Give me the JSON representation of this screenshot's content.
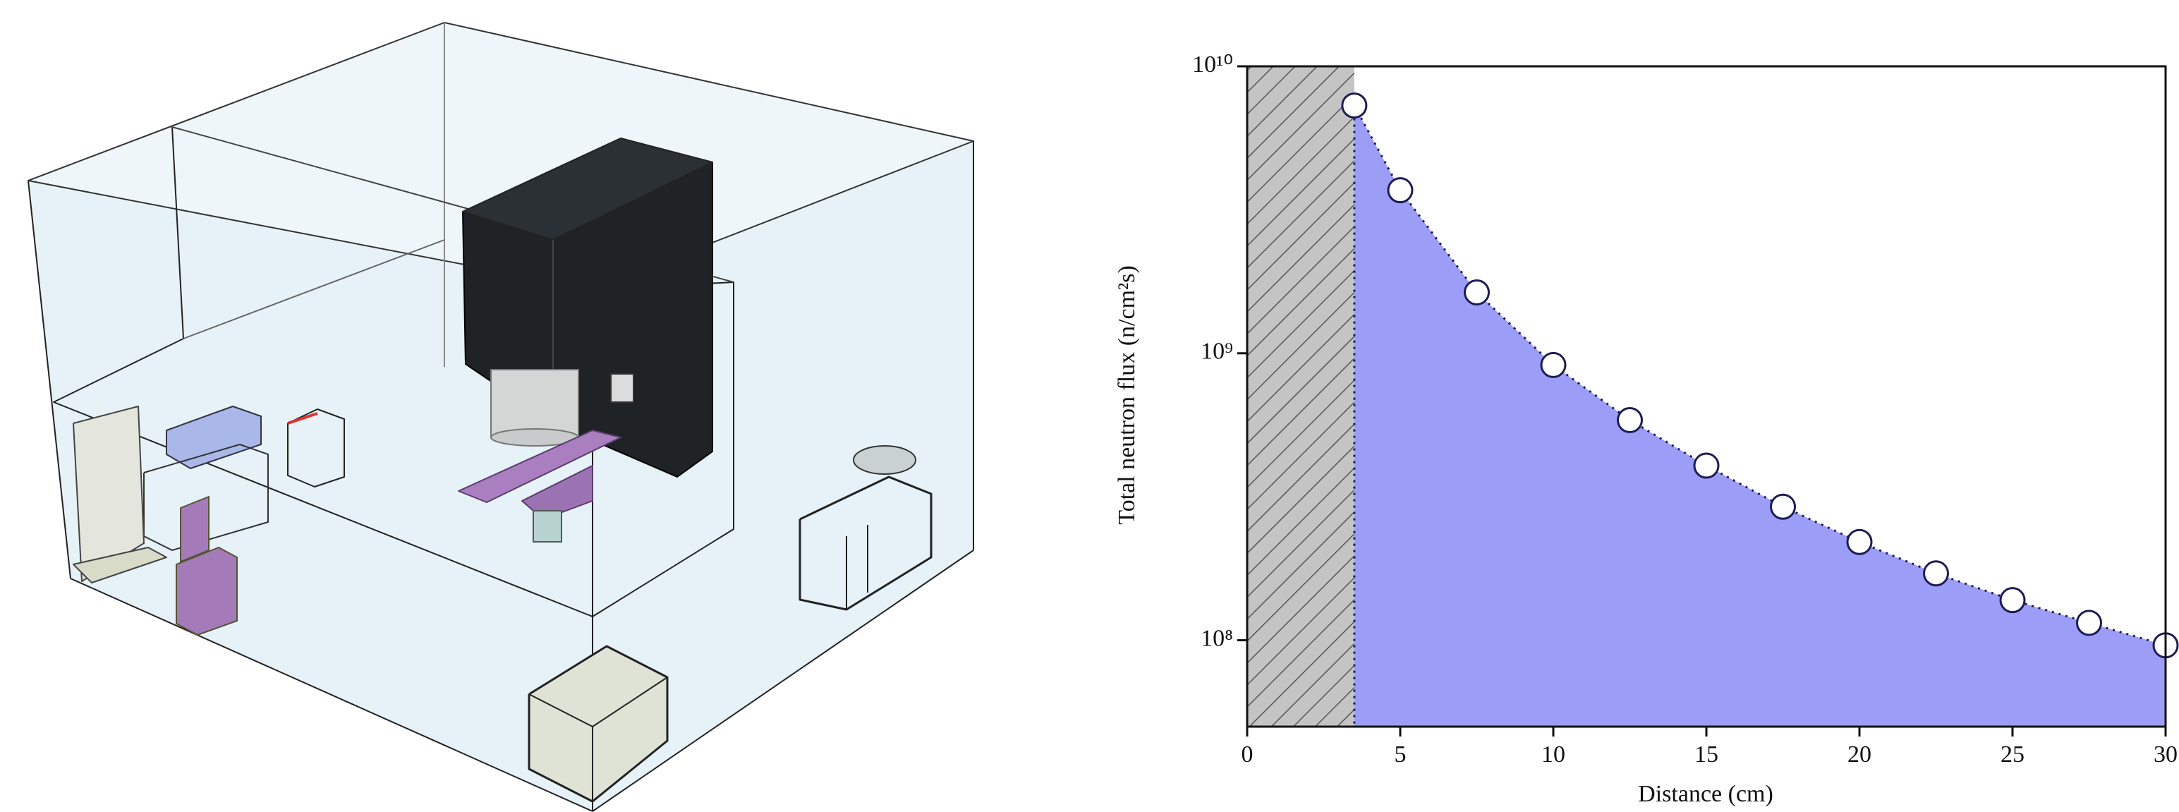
{
  "chart_data": {
    "type": "line",
    "xlabel": "Distance (cm)",
    "ylabel": "Total neutron flux (n/cm²s)",
    "x": [
      3.5,
      5,
      7.5,
      10,
      12.5,
      15,
      17.5,
      20,
      22.5,
      25,
      27.5,
      30
    ],
    "values": [
      7300000000,
      3700000000,
      1630000000,
      910000000,
      585000000,
      406000000,
      292000000,
      220000000,
      171000000,
      138000000,
      115000000,
      96000000
    ],
    "xlim": [
      0,
      30
    ],
    "ylim": [
      50000000,
      10000000000
    ],
    "xticks": [
      0,
      5,
      10,
      15,
      20,
      25,
      30
    ],
    "yticks": [
      {
        "value": 100000000,
        "label": "10⁸"
      },
      {
        "value": 1000000000,
        "label": "10⁹"
      },
      {
        "value": 10000000000,
        "label": "10¹⁰"
      }
    ],
    "log_y": true,
    "fill_color": "#9c9df6",
    "line_color": "#1c1c55",
    "marker_color": "#ffffff",
    "hatched_region": true
  }
}
